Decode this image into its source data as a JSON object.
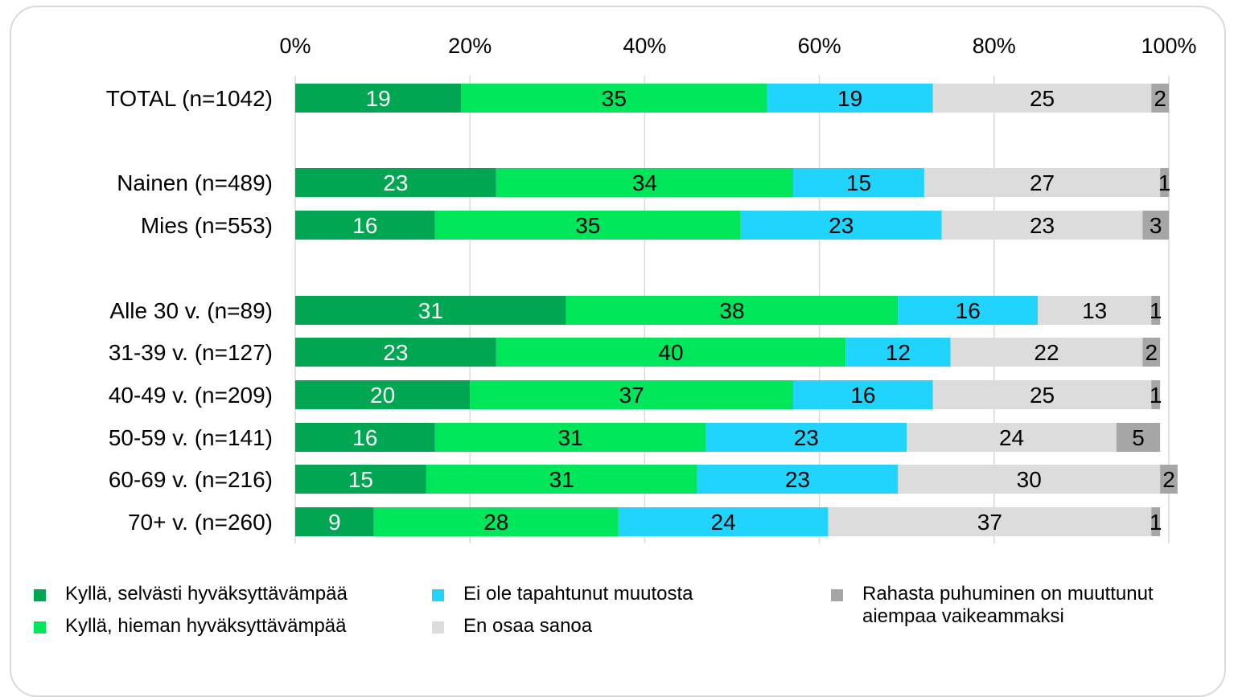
{
  "chart_data": {
    "type": "bar",
    "orientation": "horizontal",
    "stacked": true,
    "xlim": [
      0,
      100
    ],
    "x_tick_labels": [
      "0%",
      "20%",
      "40%",
      "60%",
      "80%",
      "100%"
    ],
    "grid": true,
    "categories": [
      "TOTAL (n=1042)",
      "Nainen (n=489)",
      "Mies (n=553)",
      "Alle 30 v. (n=89)",
      "31-39 v. (n=127)",
      "40-49 v. (n=209)",
      "50-59 v. (n=141)",
      "60-69 v. (n=216)",
      "70+ v. (n=260)"
    ],
    "series": [
      {
        "name": "Kyllä, selvästi hyväksyttävämpää",
        "color": "#00a651",
        "label_color": "#ffffff",
        "values": [
          19,
          23,
          16,
          31,
          23,
          20,
          16,
          15,
          9
        ]
      },
      {
        "name": "Kyllä, hieman hyväksyttävämpää",
        "color": "#00e65a",
        "label_color": "#000000",
        "values": [
          35,
          34,
          35,
          38,
          40,
          37,
          31,
          31,
          28
        ]
      },
      {
        "name": "Ei ole tapahtunut muutosta",
        "color": "#21d4fd",
        "label_color": "#000000",
        "values": [
          19,
          15,
          23,
          16,
          12,
          16,
          23,
          23,
          24
        ]
      },
      {
        "name": "En osaa sanoa",
        "color": "#dcdcdc",
        "label_color": "#000000",
        "values": [
          25,
          27,
          23,
          13,
          22,
          25,
          24,
          30,
          37
        ]
      },
      {
        "name": "Rahasta puhuminen on muuttunut aiempaa vaikeammaksi",
        "color": "#a6a6a6",
        "label_color": "#000000",
        "values": [
          2,
          1,
          3,
          1,
          2,
          1,
          5,
          2,
          1
        ]
      }
    ],
    "legend": {
      "position": "bottom",
      "items": [
        {
          "lines": [
            "Kyllä, selvästi hyväksyttävämpää"
          ],
          "color": "#00a651"
        },
        {
          "lines": [
            "Kyllä, hieman hyväksyttävämpää"
          ],
          "color": "#00e65a"
        },
        {
          "lines": [
            "Ei ole tapahtunut muutosta"
          ],
          "color": "#21d4fd"
        },
        {
          "lines": [
            "En osaa sanoa"
          ],
          "color": "#dcdcdc"
        },
        {
          "lines": [
            "Rahasta puhuminen on muuttunut",
            "aiempaa vaikeammaksi"
          ],
          "color": "#a6a6a6"
        }
      ]
    }
  }
}
